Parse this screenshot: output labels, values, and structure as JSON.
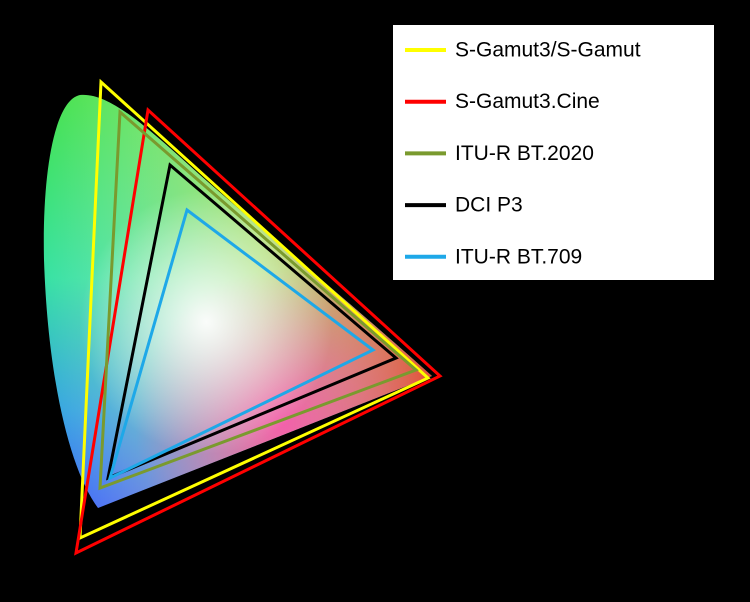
{
  "legend": {
    "items": [
      {
        "label": "S-Gamut3/S-Gamut",
        "color": "#ffff00"
      },
      {
        "label": "S-Gamut3.Cine",
        "color": "#ff0000"
      },
      {
        "label": "ITU-R BT.2020",
        "color": "#7a9a2e"
      },
      {
        "label": "DCI P3",
        "color": "#000000"
      },
      {
        "label": "ITU-R BT.709",
        "color": "#1ea8e8"
      }
    ]
  }
}
